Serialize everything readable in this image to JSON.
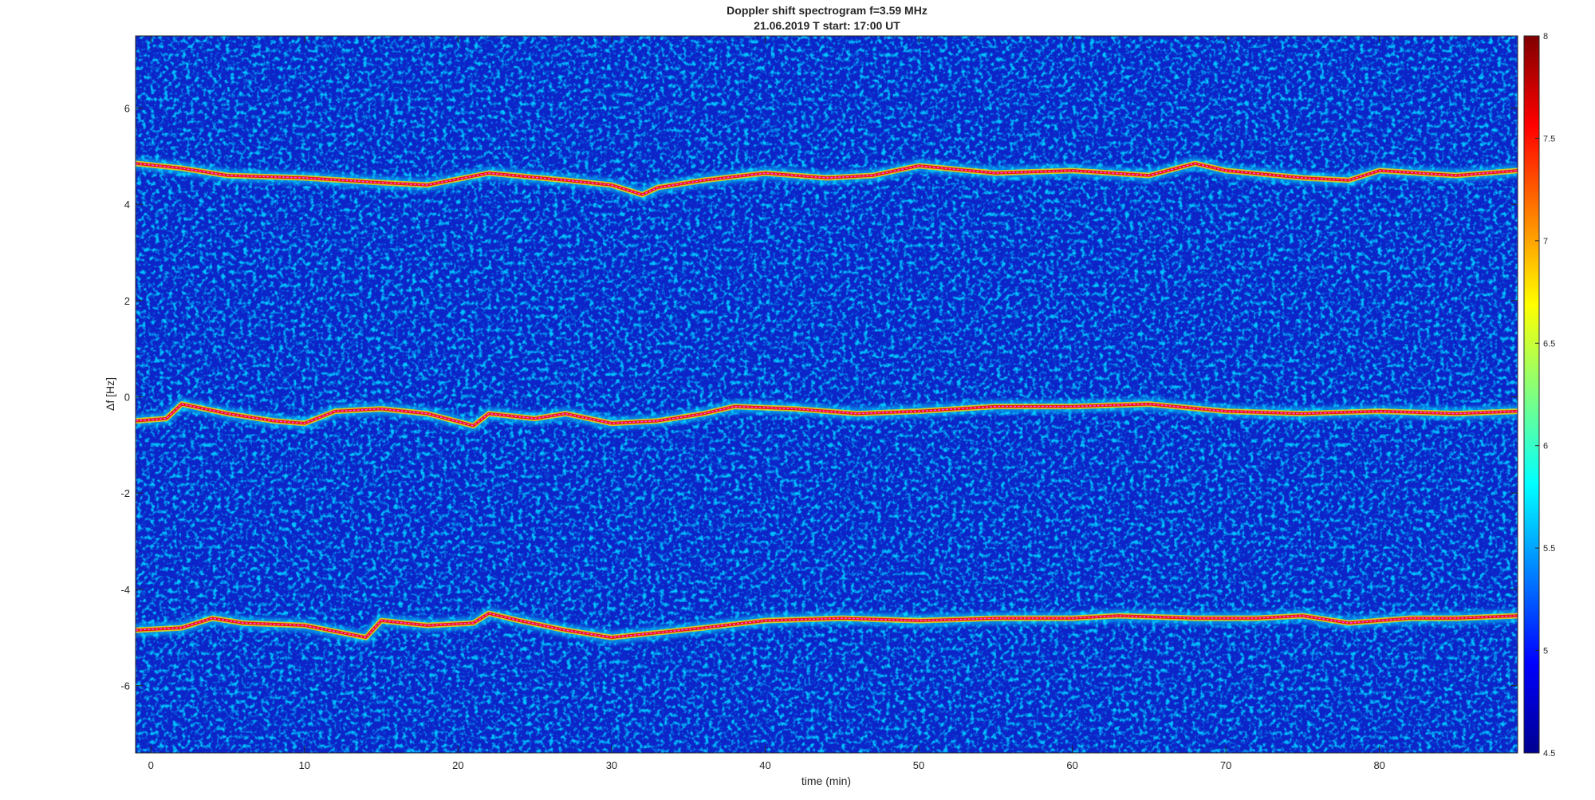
{
  "chart_data": {
    "type": "heatmap",
    "title": "Doppler shift spectrogram f=3.59 MHz",
    "subtitle": "21.06.2019   T start: 17:00 UT",
    "xlabel": "time (min)",
    "ylabel": "Δf [Hz]",
    "xlim": [
      -1,
      89
    ],
    "ylim": [
      -7.4,
      7.5
    ],
    "xticks": [
      "0",
      "10",
      "20",
      "30",
      "40",
      "50",
      "60",
      "70",
      "80"
    ],
    "yticks": [
      "-6",
      "-4",
      "-2",
      "0",
      "2",
      "4",
      "6"
    ],
    "colorbar": {
      "colormap": "jet",
      "range": [
        4.5,
        8
      ],
      "ticks": [
        "4.5",
        "5",
        "5.5",
        "6",
        "6.5",
        "7",
        "7.5",
        "8"
      ]
    },
    "traces": [
      {
        "name": "upper",
        "x": [
          -1,
          2,
          5,
          10,
          15,
          18,
          22,
          27,
          30,
          32,
          33,
          36,
          40,
          44,
          47,
          50,
          55,
          60,
          65,
          68,
          70,
          75,
          78,
          80,
          85,
          89
        ],
        "y": [
          4.85,
          4.75,
          4.6,
          4.55,
          4.45,
          4.4,
          4.65,
          4.5,
          4.4,
          4.2,
          4.35,
          4.5,
          4.65,
          4.55,
          4.6,
          4.8,
          4.65,
          4.7,
          4.6,
          4.85,
          4.7,
          4.55,
          4.5,
          4.7,
          4.6,
          4.7
        ]
      },
      {
        "name": "middle",
        "x": [
          -1,
          1,
          2,
          5,
          8,
          10,
          12,
          15,
          18,
          21,
          22,
          25,
          27,
          30,
          33,
          36,
          38,
          42,
          46,
          50,
          55,
          60,
          65,
          70,
          75,
          80,
          85,
          89
        ],
        "y": [
          -0.5,
          -0.45,
          -0.15,
          -0.35,
          -0.5,
          -0.55,
          -0.3,
          -0.25,
          -0.35,
          -0.6,
          -0.35,
          -0.45,
          -0.35,
          -0.55,
          -0.5,
          -0.35,
          -0.2,
          -0.25,
          -0.35,
          -0.3,
          -0.2,
          -0.2,
          -0.15,
          -0.3,
          -0.35,
          -0.3,
          -0.35,
          -0.3
        ]
      },
      {
        "name": "lower",
        "x": [
          -1,
          2,
          4,
          6,
          10,
          14,
          15,
          18,
          21,
          22,
          24,
          27,
          30,
          33,
          36,
          40,
          45,
          50,
          55,
          60,
          63,
          68,
          72,
          75,
          78,
          82,
          85,
          89
        ],
        "y": [
          -4.85,
          -4.8,
          -4.6,
          -4.7,
          -4.75,
          -5.0,
          -4.65,
          -4.75,
          -4.7,
          -4.5,
          -4.65,
          -4.85,
          -5.0,
          -4.9,
          -4.8,
          -4.65,
          -4.6,
          -4.65,
          -4.6,
          -4.6,
          -4.55,
          -4.6,
          -4.6,
          -4.55,
          -4.7,
          -4.6,
          -4.6,
          -4.55
        ]
      }
    ]
  }
}
